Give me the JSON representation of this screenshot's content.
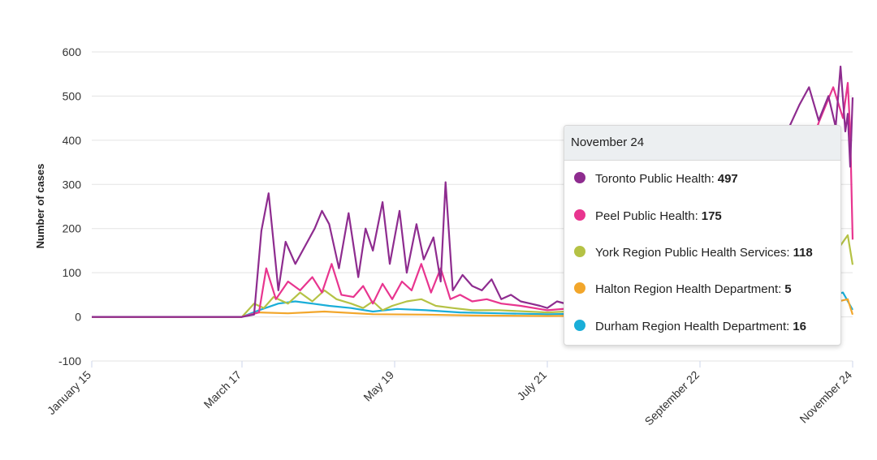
{
  "chart_data": {
    "type": "line",
    "ylabel": "Number of cases",
    "xlabel": "",
    "ylim": [
      -100,
      600
    ],
    "yticks": [
      -100,
      0,
      100,
      200,
      300,
      400,
      500,
      600
    ],
    "grid": true,
    "x_tick_labels": [
      "January 15",
      "March 17",
      "May 19",
      "July 21",
      "September 22",
      "November 24"
    ],
    "series": [
      {
        "name": "Toronto Public Health",
        "color": "#8e2c8f",
        "points": [
          [
            "January 15",
            0
          ],
          [
            "March 17",
            0
          ],
          [
            "March 22",
            5
          ],
          [
            "March 25",
            195
          ],
          [
            "March 28",
            280
          ],
          [
            "April 1",
            60
          ],
          [
            "April 4",
            170
          ],
          [
            "April 8",
            120
          ],
          [
            "April 12",
            160
          ],
          [
            "April 16",
            200
          ],
          [
            "April 19",
            240
          ],
          [
            "April 22",
            210
          ],
          [
            "April 26",
            110
          ],
          [
            "April 30",
            235
          ],
          [
            "May 4",
            90
          ],
          [
            "May 7",
            200
          ],
          [
            "May 10",
            150
          ],
          [
            "May 14",
            260
          ],
          [
            "May 17",
            120
          ],
          [
            "May 21",
            240
          ],
          [
            "May 24",
            100
          ],
          [
            "May 28",
            210
          ],
          [
            "May 31",
            130
          ],
          [
            "June 4",
            180
          ],
          [
            "June 7",
            80
          ],
          [
            "June 9",
            305
          ],
          [
            "June 12",
            60
          ],
          [
            "June 16",
            95
          ],
          [
            "June 20",
            70
          ],
          [
            "June 24",
            60
          ],
          [
            "June 28",
            85
          ],
          [
            "July 2",
            40
          ],
          [
            "July 6",
            50
          ],
          [
            "July 10",
            35
          ],
          [
            "July 14",
            30
          ],
          [
            "July 18",
            25
          ],
          [
            "July 21",
            20
          ],
          [
            "July 25",
            35
          ],
          [
            "August 1",
            25
          ],
          [
            "August 10",
            30
          ],
          [
            "August 20",
            40
          ],
          [
            "September 1",
            45
          ],
          [
            "September 10",
            60
          ],
          [
            "September 22",
            110
          ],
          [
            "October 1",
            160
          ],
          [
            "October 10",
            260
          ],
          [
            "October 20",
            350
          ],
          [
            "October 28",
            420
          ],
          [
            "November 2",
            480
          ],
          [
            "November 6",
            520
          ],
          [
            "November 10",
            445
          ],
          [
            "November 14",
            500
          ],
          [
            "November 17",
            430
          ],
          [
            "November 19",
            567
          ],
          [
            "November 21",
            420
          ],
          [
            "November 22",
            460
          ],
          [
            "November 23",
            340
          ],
          [
            "November 24",
            497
          ]
        ]
      },
      {
        "name": "Peel Public Health",
        "color": "#e8358f",
        "points": [
          [
            "January 15",
            0
          ],
          [
            "March 17",
            0
          ],
          [
            "March 24",
            10
          ],
          [
            "March 27",
            110
          ],
          [
            "March 31",
            40
          ],
          [
            "April 5",
            80
          ],
          [
            "April 10",
            60
          ],
          [
            "April 15",
            90
          ],
          [
            "April 19",
            55
          ],
          [
            "April 23",
            120
          ],
          [
            "April 27",
            50
          ],
          [
            "May 2",
            45
          ],
          [
            "May 6",
            70
          ],
          [
            "May 10",
            30
          ],
          [
            "May 14",
            75
          ],
          [
            "May 18",
            40
          ],
          [
            "May 22",
            80
          ],
          [
            "May 26",
            60
          ],
          [
            "May 30",
            120
          ],
          [
            "June 3",
            55
          ],
          [
            "June 7",
            110
          ],
          [
            "June 11",
            40
          ],
          [
            "June 15",
            50
          ],
          [
            "June 20",
            35
          ],
          [
            "June 26",
            40
          ],
          [
            "July 2",
            30
          ],
          [
            "July 10",
            25
          ],
          [
            "July 21",
            15
          ],
          [
            "August 1",
            20
          ],
          [
            "August 15",
            25
          ],
          [
            "September 1",
            40
          ],
          [
            "September 22",
            70
          ],
          [
            "October 5",
            120
          ],
          [
            "October 15",
            180
          ],
          [
            "October 25",
            220
          ],
          [
            "November 3",
            330
          ],
          [
            "November 10",
            440
          ],
          [
            "November 16",
            520
          ],
          [
            "November 20",
            450
          ],
          [
            "November 22",
            530
          ],
          [
            "November 23",
            420
          ],
          [
            "November 24",
            175
          ]
        ]
      },
      {
        "name": "York Region Public Health Services",
        "color": "#b5c245",
        "points": [
          [
            "January 15",
            0
          ],
          [
            "March 17",
            0
          ],
          [
            "March 22",
            30
          ],
          [
            "March 26",
            20
          ],
          [
            "March 30",
            45
          ],
          [
            "April 5",
            30
          ],
          [
            "April 10",
            55
          ],
          [
            "April 15",
            35
          ],
          [
            "April 20",
            60
          ],
          [
            "April 25",
            40
          ],
          [
            "May 1",
            30
          ],
          [
            "May 6",
            20
          ],
          [
            "May 10",
            35
          ],
          [
            "May 14",
            15
          ],
          [
            "May 18",
            25
          ],
          [
            "May 24",
            35
          ],
          [
            "May 30",
            40
          ],
          [
            "June 5",
            25
          ],
          [
            "June 12",
            20
          ],
          [
            "June 20",
            15
          ],
          [
            "July 1",
            15
          ],
          [
            "July 21",
            10
          ],
          [
            "August 10",
            15
          ],
          [
            "September 1",
            20
          ],
          [
            "September 22",
            35
          ],
          [
            "October 15",
            60
          ],
          [
            "November 5",
            100
          ],
          [
            "November 15",
            130
          ],
          [
            "November 22",
            185
          ],
          [
            "November 24",
            118
          ]
        ]
      },
      {
        "name": "Halton Region Health Department",
        "color": "#f2a62b",
        "points": [
          [
            "January 15",
            0
          ],
          [
            "March 17",
            0
          ],
          [
            "March 24",
            10
          ],
          [
            "April 5",
            8
          ],
          [
            "April 20",
            12
          ],
          [
            "May 10",
            6
          ],
          [
            "June 1",
            5
          ],
          [
            "June 20",
            3
          ],
          [
            "July 21",
            2
          ],
          [
            "August 20",
            3
          ],
          [
            "September 22",
            8
          ],
          [
            "October 20",
            15
          ],
          [
            "November 10",
            25
          ],
          [
            "November 22",
            40
          ],
          [
            "November 24",
            5
          ]
        ]
      },
      {
        "name": "Durham Region Health Department",
        "color": "#1aaed8",
        "points": [
          [
            "January 15",
            0
          ],
          [
            "March 17",
            0
          ],
          [
            "March 24",
            15
          ],
          [
            "April 1",
            30
          ],
          [
            "April 8",
            35
          ],
          [
            "April 15",
            30
          ],
          [
            "April 22",
            25
          ],
          [
            "May 1",
            20
          ],
          [
            "May 10",
            12
          ],
          [
            "May 20",
            18
          ],
          [
            "June 1",
            15
          ],
          [
            "June 15",
            10
          ],
          [
            "July 1",
            8
          ],
          [
            "July 21",
            6
          ],
          [
            "August 15",
            8
          ],
          [
            "September 22",
            15
          ],
          [
            "October 20",
            30
          ],
          [
            "November 10",
            40
          ],
          [
            "November 20",
            55
          ],
          [
            "November 24",
            16
          ]
        ]
      }
    ]
  },
  "tooltip": {
    "date": "November 24",
    "rows": [
      {
        "label": "Toronto Public Health:",
        "value": "497",
        "color": "#8e2c8f"
      },
      {
        "label": "Peel Public Health:",
        "value": "175",
        "color": "#e8358f"
      },
      {
        "label": "York Region Public Health Services:",
        "value": "118",
        "color": "#b5c245"
      },
      {
        "label": "Halton Region Health Department:",
        "value": "5",
        "color": "#f2a62b"
      },
      {
        "label": "Durham Region Health Department:",
        "value": "16",
        "color": "#1aaed8"
      }
    ]
  }
}
